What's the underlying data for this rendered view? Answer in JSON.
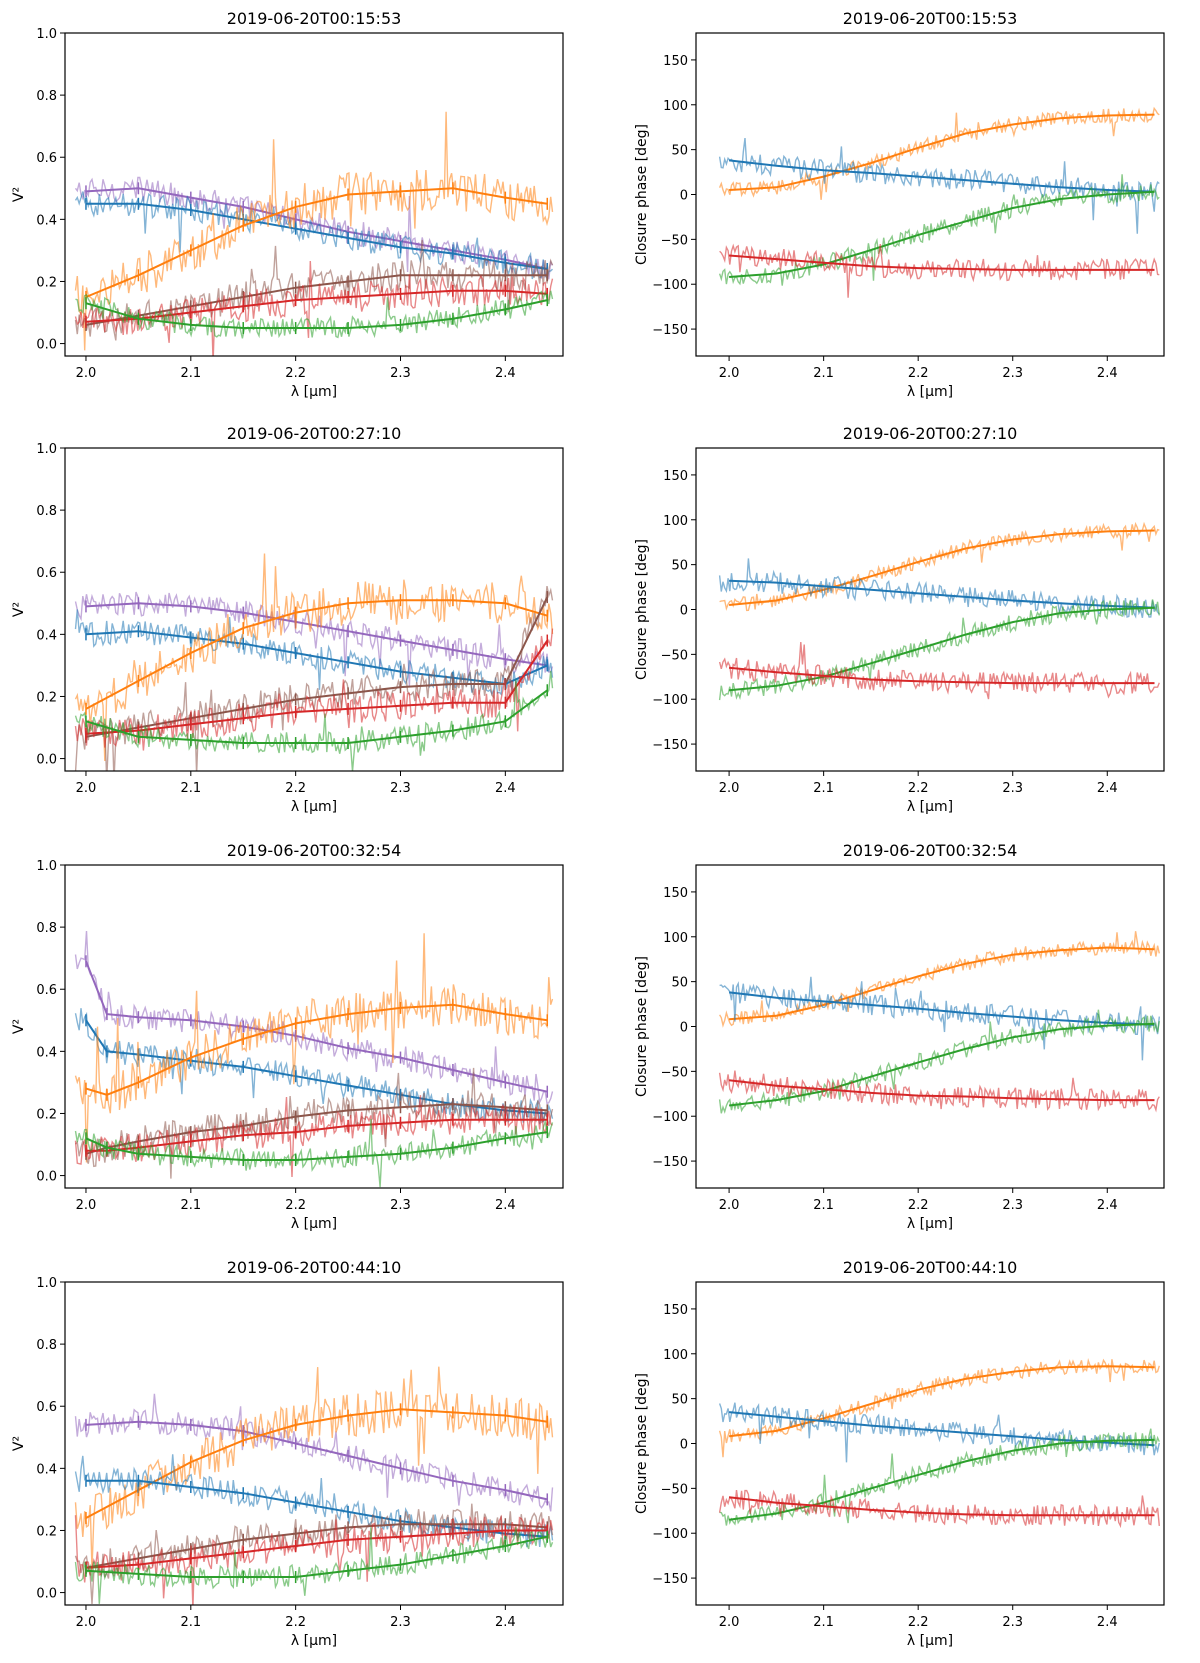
{
  "figure": {
    "description_rows": 4,
    "description_cols": 2
  },
  "series_colors": {
    "blue": "#1f77b4",
    "orange": "#ff7f0e",
    "green": "#2ca02c",
    "red": "#d62728",
    "purple": "#9467bd",
    "brown": "#8c564b"
  },
  "chart_data": [
    {
      "type": "line",
      "panel": "vis2",
      "row": 0,
      "title": "2019-06-20T00:15:53",
      "xlabel": "λ [μm]",
      "ylabel": "V²",
      "xlim": [
        1.98,
        2.455
      ],
      "ylim": [
        -0.04,
        1.0
      ],
      "xticks": [
        "2.0",
        "2.1",
        "2.2",
        "2.3",
        "2.4"
      ],
      "yticks": [
        "0.0",
        "0.2",
        "0.4",
        "0.6",
        "0.8",
        "1.0"
      ],
      "x": [
        2.0,
        2.05,
        2.1,
        2.15,
        2.2,
        2.25,
        2.3,
        2.35,
        2.4,
        2.44
      ],
      "series": [
        {
          "name": "purple",
          "color": "purple",
          "values": [
            0.49,
            0.5,
            0.47,
            0.44,
            0.4,
            0.36,
            0.33,
            0.3,
            0.27,
            0.24
          ],
          "noise": 0.04
        },
        {
          "name": "blue",
          "color": "blue",
          "values": [
            0.45,
            0.45,
            0.43,
            0.4,
            0.37,
            0.34,
            0.31,
            0.29,
            0.26,
            0.24
          ],
          "noise": 0.04
        },
        {
          "name": "orange",
          "color": "orange",
          "values": [
            0.15,
            0.22,
            0.3,
            0.38,
            0.44,
            0.48,
            0.49,
            0.5,
            0.47,
            0.45
          ],
          "noise": 0.07
        },
        {
          "name": "brown",
          "color": "brown",
          "values": [
            0.06,
            0.09,
            0.12,
            0.15,
            0.18,
            0.2,
            0.22,
            0.22,
            0.22,
            0.22
          ],
          "noise": 0.05
        },
        {
          "name": "red",
          "color": "red",
          "values": [
            0.07,
            0.08,
            0.1,
            0.12,
            0.14,
            0.15,
            0.16,
            0.17,
            0.17,
            0.16
          ],
          "noise": 0.05
        },
        {
          "name": "green",
          "color": "green",
          "values": [
            0.13,
            0.08,
            0.06,
            0.05,
            0.05,
            0.05,
            0.06,
            0.08,
            0.11,
            0.14
          ],
          "noise": 0.035
        }
      ]
    },
    {
      "type": "line",
      "panel": "cp",
      "row": 0,
      "title": "2019-06-20T00:15:53",
      "xlabel": "λ [μm]",
      "ylabel": "Closure phase [deg]",
      "xlim": [
        1.965,
        2.46
      ],
      "ylim": [
        -180,
        180
      ],
      "xticks": [
        "2.0",
        "2.1",
        "2.2",
        "2.3",
        "2.4"
      ],
      "yticks": [
        "150",
        "100",
        "50",
        "0",
        "−50",
        "−100",
        "−150"
      ],
      "x": [
        2.0,
        2.05,
        2.1,
        2.15,
        2.2,
        2.25,
        2.3,
        2.35,
        2.4,
        2.45
      ],
      "series": [
        {
          "name": "orange",
          "color": "orange",
          "values": [
            5,
            8,
            20,
            35,
            52,
            68,
            78,
            85,
            88,
            89
          ],
          "noise": 8
        },
        {
          "name": "blue",
          "color": "blue",
          "values": [
            38,
            32,
            27,
            24,
            20,
            16,
            12,
            8,
            5,
            3
          ],
          "noise": 12
        },
        {
          "name": "green",
          "color": "green",
          "values": [
            -92,
            -88,
            -78,
            -62,
            -45,
            -30,
            -15,
            -5,
            0,
            3
          ],
          "noise": 10
        },
        {
          "name": "red",
          "color": "red",
          "values": [
            -68,
            -72,
            -76,
            -80,
            -82,
            -83,
            -84,
            -84,
            -84,
            -84
          ],
          "noise": 12
        }
      ]
    },
    {
      "type": "line",
      "panel": "vis2",
      "row": 1,
      "title": "2019-06-20T00:27:10",
      "xlabel": "λ [μm]",
      "ylabel": "V²",
      "xlim": [
        1.98,
        2.455
      ],
      "ylim": [
        -0.04,
        1.0
      ],
      "xticks": [
        "2.0",
        "2.1",
        "2.2",
        "2.3",
        "2.4"
      ],
      "yticks": [
        "0.0",
        "0.2",
        "0.4",
        "0.6",
        "0.8",
        "1.0"
      ],
      "x": [
        2.0,
        2.05,
        2.1,
        2.15,
        2.2,
        2.25,
        2.3,
        2.35,
        2.4,
        2.44
      ],
      "series": [
        {
          "name": "purple",
          "color": "purple",
          "values": [
            0.49,
            0.5,
            0.49,
            0.47,
            0.44,
            0.41,
            0.38,
            0.35,
            0.32,
            0.3
          ],
          "noise": 0.04
        },
        {
          "name": "blue",
          "color": "blue",
          "values": [
            0.4,
            0.41,
            0.39,
            0.37,
            0.34,
            0.31,
            0.28,
            0.26,
            0.24,
            0.3
          ],
          "noise": 0.04
        },
        {
          "name": "orange",
          "color": "orange",
          "values": [
            0.16,
            0.25,
            0.34,
            0.42,
            0.47,
            0.5,
            0.51,
            0.51,
            0.5,
            0.46
          ],
          "noise": 0.07
        },
        {
          "name": "brown",
          "color": "brown",
          "values": [
            0.07,
            0.1,
            0.13,
            0.16,
            0.19,
            0.21,
            0.23,
            0.24,
            0.24,
            0.52
          ],
          "noise": 0.05
        },
        {
          "name": "red",
          "color": "red",
          "values": [
            0.08,
            0.09,
            0.11,
            0.13,
            0.15,
            0.16,
            0.17,
            0.18,
            0.18,
            0.38
          ],
          "noise": 0.05
        },
        {
          "name": "green",
          "color": "green",
          "values": [
            0.12,
            0.07,
            0.06,
            0.05,
            0.05,
            0.05,
            0.07,
            0.09,
            0.12,
            0.22
          ],
          "noise": 0.035
        }
      ]
    },
    {
      "type": "line",
      "panel": "cp",
      "row": 1,
      "title": "2019-06-20T00:27:10",
      "xlabel": "λ [μm]",
      "ylabel": "Closure phase [deg]",
      "xlim": [
        1.965,
        2.46
      ],
      "ylim": [
        -180,
        180
      ],
      "xticks": [
        "2.0",
        "2.1",
        "2.2",
        "2.3",
        "2.4"
      ],
      "yticks": [
        "150",
        "100",
        "50",
        "0",
        "−50",
        "−100",
        "−150"
      ],
      "x": [
        2.0,
        2.05,
        2.1,
        2.15,
        2.2,
        2.25,
        2.3,
        2.35,
        2.4,
        2.45
      ],
      "series": [
        {
          "name": "orange",
          "color": "orange",
          "values": [
            5,
            10,
            22,
            37,
            53,
            68,
            78,
            84,
            87,
            88
          ],
          "noise": 8
        },
        {
          "name": "blue",
          "color": "blue",
          "values": [
            32,
            30,
            26,
            22,
            18,
            14,
            10,
            7,
            4,
            2
          ],
          "noise": 12
        },
        {
          "name": "green",
          "color": "green",
          "values": [
            -90,
            -85,
            -75,
            -60,
            -44,
            -28,
            -14,
            -4,
            0,
            2
          ],
          "noise": 10
        },
        {
          "name": "red",
          "color": "red",
          "values": [
            -65,
            -70,
            -74,
            -78,
            -80,
            -81,
            -82,
            -82,
            -82,
            -82
          ],
          "noise": 12
        }
      ]
    },
    {
      "type": "line",
      "panel": "vis2",
      "row": 2,
      "title": "2019-06-20T00:32:54",
      "xlabel": "λ [μm]",
      "ylabel": "V²",
      "xlim": [
        1.98,
        2.455
      ],
      "ylim": [
        -0.04,
        1.0
      ],
      "xticks": [
        "2.0",
        "2.1",
        "2.2",
        "2.3",
        "2.4"
      ],
      "yticks": [
        "0.0",
        "0.2",
        "0.4",
        "0.6",
        "0.8",
        "1.0"
      ],
      "x": [
        2.0,
        2.02,
        2.05,
        2.1,
        2.15,
        2.2,
        2.25,
        2.3,
        2.35,
        2.4,
        2.44
      ],
      "series": [
        {
          "name": "purple",
          "color": "purple",
          "values": [
            0.69,
            0.52,
            0.51,
            0.5,
            0.48,
            0.45,
            0.41,
            0.38,
            0.34,
            0.3,
            0.27
          ],
          "noise": 0.04
        },
        {
          "name": "blue",
          "color": "blue",
          "values": [
            0.5,
            0.4,
            0.39,
            0.37,
            0.35,
            0.32,
            0.29,
            0.26,
            0.23,
            0.21,
            0.2
          ],
          "noise": 0.04
        },
        {
          "name": "orange",
          "color": "orange",
          "values": [
            0.28,
            0.26,
            0.3,
            0.38,
            0.44,
            0.49,
            0.52,
            0.54,
            0.55,
            0.52,
            0.5
          ],
          "noise": 0.07
        },
        {
          "name": "brown",
          "color": "brown",
          "values": [
            0.07,
            0.09,
            0.11,
            0.14,
            0.16,
            0.19,
            0.21,
            0.22,
            0.23,
            0.22,
            0.21
          ],
          "noise": 0.05
        },
        {
          "name": "red",
          "color": "red",
          "values": [
            0.08,
            0.08,
            0.09,
            0.11,
            0.13,
            0.14,
            0.16,
            0.17,
            0.18,
            0.18,
            0.18
          ],
          "noise": 0.05
        },
        {
          "name": "green",
          "color": "green",
          "values": [
            0.12,
            0.09,
            0.07,
            0.06,
            0.05,
            0.05,
            0.06,
            0.07,
            0.09,
            0.12,
            0.14
          ],
          "noise": 0.035
        }
      ]
    },
    {
      "type": "line",
      "panel": "cp",
      "row": 2,
      "title": "2019-06-20T00:32:54",
      "xlabel": "λ [μm]",
      "ylabel": "Closure phase [deg]",
      "xlim": [
        1.965,
        2.46
      ],
      "ylim": [
        -180,
        180
      ],
      "xticks": [
        "2.0",
        "2.1",
        "2.2",
        "2.3",
        "2.4"
      ],
      "yticks": [
        "150",
        "100",
        "50",
        "0",
        "−50",
        "−100",
        "−150"
      ],
      "x": [
        2.0,
        2.05,
        2.1,
        2.15,
        2.2,
        2.25,
        2.3,
        2.35,
        2.4,
        2.45
      ],
      "series": [
        {
          "name": "orange",
          "color": "orange",
          "values": [
            8,
            12,
            24,
            40,
            56,
            70,
            80,
            85,
            88,
            86
          ],
          "noise": 8
        },
        {
          "name": "blue",
          "color": "blue",
          "values": [
            38,
            32,
            28,
            24,
            20,
            15,
            11,
            7,
            4,
            2
          ],
          "noise": 12
        },
        {
          "name": "green",
          "color": "green",
          "values": [
            -88,
            -82,
            -72,
            -56,
            -40,
            -25,
            -12,
            -3,
            1,
            3
          ],
          "noise": 10
        },
        {
          "name": "red",
          "color": "red",
          "values": [
            -60,
            -66,
            -70,
            -74,
            -77,
            -78,
            -80,
            -81,
            -82,
            -82
          ],
          "noise": 12
        }
      ]
    },
    {
      "type": "line",
      "panel": "vis2",
      "row": 3,
      "title": "2019-06-20T00:44:10",
      "xlabel": "λ [μm]",
      "ylabel": "V²",
      "xlim": [
        1.98,
        2.455
      ],
      "ylim": [
        -0.04,
        1.0
      ],
      "xticks": [
        "2.0",
        "2.1",
        "2.2",
        "2.3",
        "2.4"
      ],
      "yticks": [
        "0.0",
        "0.2",
        "0.4",
        "0.6",
        "0.8",
        "1.0"
      ],
      "x": [
        2.0,
        2.05,
        2.1,
        2.15,
        2.2,
        2.25,
        2.3,
        2.35,
        2.4,
        2.44
      ],
      "series": [
        {
          "name": "purple",
          "color": "purple",
          "values": [
            0.54,
            0.55,
            0.54,
            0.52,
            0.48,
            0.44,
            0.4,
            0.36,
            0.33,
            0.3
          ],
          "noise": 0.04
        },
        {
          "name": "orange",
          "color": "orange",
          "values": [
            0.24,
            0.33,
            0.42,
            0.49,
            0.54,
            0.57,
            0.59,
            0.58,
            0.57,
            0.55
          ],
          "noise": 0.07
        },
        {
          "name": "blue",
          "color": "blue",
          "values": [
            0.36,
            0.36,
            0.34,
            0.32,
            0.29,
            0.26,
            0.23,
            0.21,
            0.19,
            0.18
          ],
          "noise": 0.04
        },
        {
          "name": "brown",
          "color": "brown",
          "values": [
            0.08,
            0.11,
            0.14,
            0.17,
            0.19,
            0.21,
            0.22,
            0.22,
            0.22,
            0.21
          ],
          "noise": 0.05
        },
        {
          "name": "red",
          "color": "red",
          "values": [
            0.08,
            0.09,
            0.11,
            0.13,
            0.15,
            0.17,
            0.18,
            0.19,
            0.2,
            0.2
          ],
          "noise": 0.05
        },
        {
          "name": "green",
          "color": "green",
          "values": [
            0.07,
            0.06,
            0.05,
            0.05,
            0.05,
            0.07,
            0.09,
            0.12,
            0.15,
            0.18
          ],
          "noise": 0.035
        }
      ]
    },
    {
      "type": "line",
      "panel": "cp",
      "row": 3,
      "title": "2019-06-20T00:44:10",
      "xlabel": "λ [μm]",
      "ylabel": "Closure phase [deg]",
      "xlim": [
        1.965,
        2.46
      ],
      "ylim": [
        -180,
        180
      ],
      "xticks": [
        "2.0",
        "2.1",
        "2.2",
        "2.3",
        "2.4"
      ],
      "yticks": [
        "150",
        "100",
        "50",
        "0",
        "−50",
        "−100",
        "−150"
      ],
      "x": [
        2.0,
        2.05,
        2.1,
        2.15,
        2.2,
        2.25,
        2.3,
        2.35,
        2.4,
        2.45
      ],
      "series": [
        {
          "name": "orange",
          "color": "orange",
          "values": [
            8,
            14,
            28,
            44,
            60,
            72,
            80,
            85,
            86,
            85
          ],
          "noise": 8
        },
        {
          "name": "blue",
          "color": "blue",
          "values": [
            35,
            30,
            25,
            20,
            16,
            12,
            8,
            4,
            1,
            -2
          ],
          "noise": 12
        },
        {
          "name": "green",
          "color": "green",
          "values": [
            -85,
            -78,
            -66,
            -50,
            -35,
            -20,
            -8,
            0,
            3,
            4
          ],
          "noise": 10
        },
        {
          "name": "red",
          "color": "red",
          "values": [
            -60,
            -66,
            -70,
            -74,
            -77,
            -79,
            -80,
            -80,
            -80,
            -80
          ],
          "noise": 12
        }
      ]
    }
  ]
}
